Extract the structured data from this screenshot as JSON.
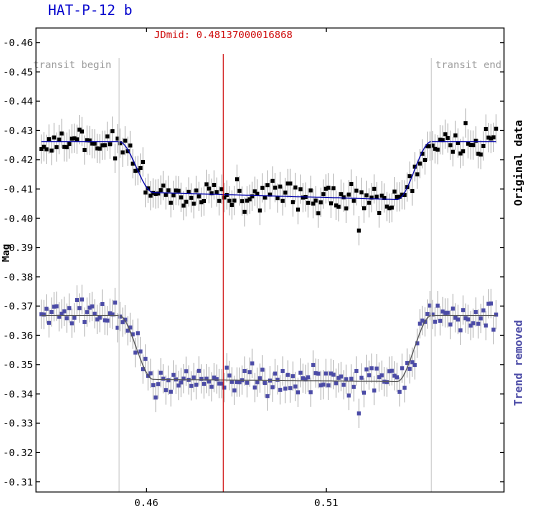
{
  "chart_data": {
    "type": "scatter",
    "title": "HAT-P-12 b",
    "ylabel": "Mag",
    "xlim": [
      0.4293,
      0.5594
    ],
    "ylim": [
      -0.465,
      -0.3065
    ],
    "x_ticks": [
      "0.46",
      "0.51"
    ],
    "x_tick_values": [
      0.46,
      0.51
    ],
    "y_ticks": [
      "-0.46",
      "-0.45",
      "-0.44",
      "-0.43",
      "-0.42",
      "-0.41",
      "-0.40",
      "-0.39",
      "-0.38",
      "-0.37",
      "-0.36",
      "-0.35",
      "-0.34",
      "-0.33",
      "-0.32",
      "-0.31"
    ],
    "y_tick_values": [
      -0.46,
      -0.45,
      -0.44,
      -0.43,
      -0.42,
      -0.41,
      -0.4,
      -0.39,
      -0.38,
      -0.37,
      -0.36,
      -0.35,
      -0.34,
      -0.33,
      -0.32,
      -0.31
    ],
    "transit_begin": 0.4524,
    "transit_end": 0.5392,
    "transit_begin_label": "transit begin",
    "transit_end_label": "transit end",
    "jd_mid": 0.48137000016868,
    "jd_mid_label": "JDmid: 0.48137000016868",
    "grid": false,
    "series": [
      {
        "label": "Original data",
        "color": "#000000",
        "fit_color": "#0000aa",
        "baseline": -0.4262,
        "depth": 0.0186,
        "x_start": 0.4308,
        "x_end": 0.5572,
        "n_points": 180,
        "scatter": 0.0045,
        "error": 0.005
      },
      {
        "label": "Trend removed",
        "color": "#4a4aa6",
        "fit_color": "#555555",
        "baseline": -0.3668,
        "depth": 0.0222,
        "x_start": 0.4308,
        "x_end": 0.5572,
        "n_points": 180,
        "scatter": 0.0045,
        "error": 0.005
      }
    ]
  },
  "colors": {
    "frame": "#000000",
    "transit_lines": "#cccccc",
    "jd_line": "#cc0000",
    "error_bars": "#c8c8c8"
  }
}
